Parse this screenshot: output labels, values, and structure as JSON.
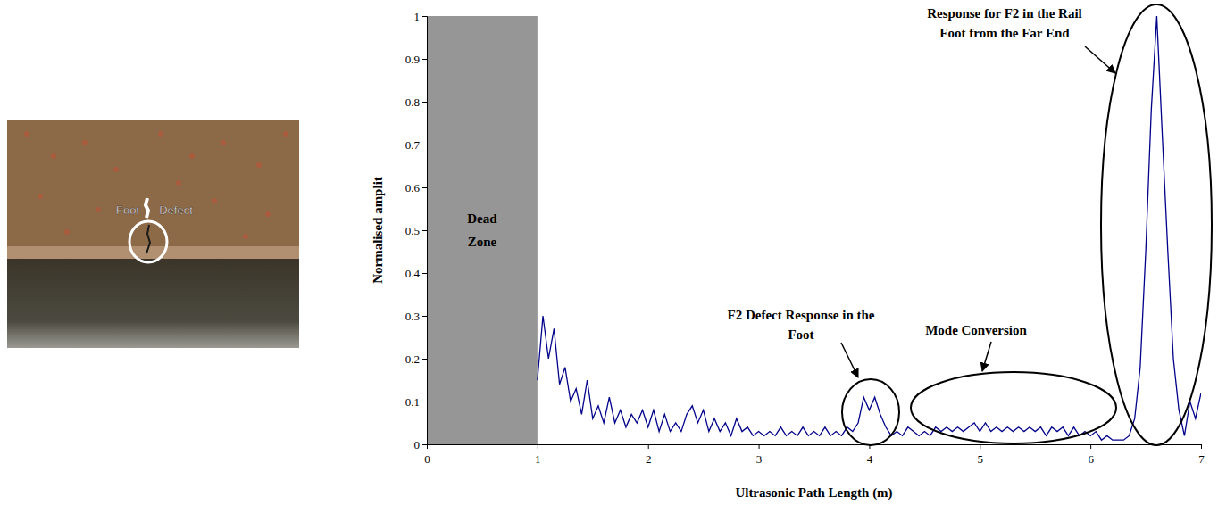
{
  "photo": {
    "labels": [
      "Foot",
      "Defect"
    ]
  },
  "chart_data": {
    "type": "line",
    "x_label": "Ultrasonic Path Length (m)",
    "y_label": "Normalised amplit",
    "xlim": [
      0,
      7
    ],
    "ylim": [
      0,
      1
    ],
    "xticks": [
      0,
      1,
      2,
      3,
      4,
      5,
      6,
      7
    ],
    "yticks": [
      0,
      0.1,
      0.2,
      0.3,
      0.4,
      0.5,
      0.6,
      0.7,
      0.8,
      0.9,
      1
    ],
    "grid": false,
    "color": "#00008b",
    "regions": [
      {
        "label": "Dead Zone",
        "x": [
          0,
          1
        ],
        "color": "#969696"
      }
    ],
    "annotations": [
      "F2 Defect Response in the Foot",
      "Mode Conversion",
      "Response for F2 in the Rail Foot from the Far End"
    ],
    "x": [
      1,
      1.05,
      1.1,
      1.15,
      1.2,
      1.25,
      1.3,
      1.35,
      1.4,
      1.45,
      1.5,
      1.55,
      1.6,
      1.65,
      1.7,
      1.75,
      1.8,
      1.85,
      1.9,
      1.95,
      2,
      2.05,
      2.1,
      2.15,
      2.2,
      2.25,
      2.3,
      2.35,
      2.4,
      2.45,
      2.5,
      2.55,
      2.6,
      2.65,
      2.7,
      2.75,
      2.8,
      2.85,
      2.9,
      2.95,
      3,
      3.05,
      3.1,
      3.15,
      3.2,
      3.25,
      3.3,
      3.35,
      3.4,
      3.45,
      3.5,
      3.55,
      3.6,
      3.65,
      3.7,
      3.75,
      3.8,
      3.85,
      3.9,
      3.95,
      4,
      4.05,
      4.1,
      4.15,
      4.2,
      4.25,
      4.3,
      4.35,
      4.4,
      4.45,
      4.5,
      4.55,
      4.6,
      4.65,
      4.7,
      4.75,
      4.8,
      4.85,
      4.9,
      4.95,
      5,
      5.05,
      5.1,
      5.15,
      5.2,
      5.25,
      5.3,
      5.35,
      5.4,
      5.45,
      5.5,
      5.55,
      5.6,
      5.65,
      5.7,
      5.75,
      5.8,
      5.85,
      5.9,
      5.95,
      6,
      6.05,
      6.1,
      6.15,
      6.2,
      6.25,
      6.3,
      6.35,
      6.4,
      6.45,
      6.5,
      6.55,
      6.6,
      6.65,
      6.7,
      6.75,
      6.8,
      6.85,
      6.9,
      6.95,
      7
    ],
    "values": [
      0.15,
      0.3,
      0.2,
      0.27,
      0.14,
      0.18,
      0.1,
      0.13,
      0.07,
      0.15,
      0.06,
      0.09,
      0.05,
      0.11,
      0.05,
      0.08,
      0.04,
      0.07,
      0.05,
      0.08,
      0.04,
      0.08,
      0.03,
      0.07,
      0.03,
      0.05,
      0.03,
      0.07,
      0.09,
      0.05,
      0.08,
      0.03,
      0.06,
      0.03,
      0.05,
      0.02,
      0.06,
      0.03,
      0.04,
      0.02,
      0.03,
      0.02,
      0.03,
      0.02,
      0.04,
      0.02,
      0.03,
      0.02,
      0.04,
      0.02,
      0.03,
      0.02,
      0.04,
      0.02,
      0.03,
      0.02,
      0.04,
      0.03,
      0.05,
      0.11,
      0.08,
      0.11,
      0.07,
      0.04,
      0.02,
      0.03,
      0.02,
      0.04,
      0.03,
      0.02,
      0.03,
      0.02,
      0.04,
      0.03,
      0.04,
      0.03,
      0.04,
      0.03,
      0.04,
      0.05,
      0.03,
      0.05,
      0.03,
      0.04,
      0.03,
      0.04,
      0.03,
      0.04,
      0.03,
      0.04,
      0.03,
      0.04,
      0.02,
      0.04,
      0.03,
      0.04,
      0.02,
      0.04,
      0.02,
      0.03,
      0.02,
      0.03,
      0.01,
      0.02,
      0.01,
      0.01,
      0.01,
      0.02,
      0.06,
      0.18,
      0.45,
      0.78,
      1.0,
      0.72,
      0.45,
      0.2,
      0.08,
      0.02,
      0.1,
      0.06,
      0.12
    ]
  }
}
